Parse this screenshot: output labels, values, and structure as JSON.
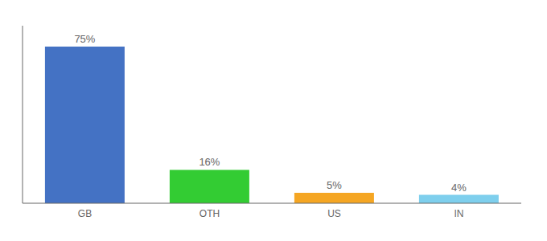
{
  "chart_data": {
    "type": "bar",
    "categories": [
      "GB",
      "OTH",
      "US",
      "IN"
    ],
    "values": [
      75,
      16,
      5,
      4
    ],
    "value_labels": [
      "75%",
      "16%",
      "5%",
      "4%"
    ],
    "colors": [
      "#4472c4",
      "#33cc33",
      "#f5a623",
      "#7ecfed"
    ],
    "ylim": [
      0,
      85
    ],
    "data_labels": true,
    "tick_labels": "x"
  }
}
